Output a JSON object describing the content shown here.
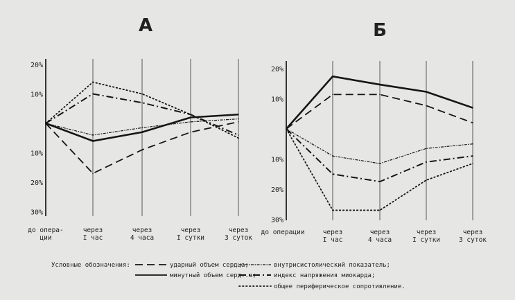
{
  "chart_data": [
    {
      "type": "line",
      "title": "А",
      "categories": [
        "до опера-\nции",
        "через\nI час",
        "через\n4 часа",
        "через\nI сутки",
        "через\n3 суток"
      ],
      "y_tick_labels": [
        "20%",
        "10%",
        "10%",
        "20%",
        "30%"
      ],
      "y_tick_values": [
        20,
        10,
        -10,
        -20,
        -30
      ],
      "ylim": [
        -30,
        20
      ],
      "grid": "vertical lines at each category",
      "series": [
        {
          "name": "ударный объем сердца",
          "style": "dashed",
          "values": [
            0,
            -17,
            -9,
            -3,
            0.5
          ]
        },
        {
          "name": "минутный объем сердца",
          "style": "solid",
          "values": [
            0,
            -6,
            -3,
            2,
            3
          ]
        },
        {
          "name": "внутрисистолический показатель",
          "style": "wavy",
          "values": [
            0,
            -4,
            -1.5,
            0.5,
            1.5
          ]
        },
        {
          "name": "индекс напряжения миокарда",
          "style": "dashdot",
          "values": [
            0,
            10,
            7,
            3,
            -4
          ]
        },
        {
          "name": "общее периферическое сопротивление",
          "style": "dotted",
          "values": [
            0,
            14,
            10,
            3,
            -5
          ]
        }
      ]
    },
    {
      "type": "line",
      "title": "Б",
      "categories": [
        "до операции",
        "через\nI час",
        "через\n4 часа",
        "через\nI сутки",
        "через\n3 суток"
      ],
      "y_tick_labels": [
        "20%",
        "10%",
        "10%",
        "20%",
        "30%"
      ],
      "y_tick_values": [
        20,
        10,
        -10,
        -20,
        -30
      ],
      "ylim": [
        -30,
        20
      ],
      "grid": "vertical lines at each category",
      "series": [
        {
          "name": "ударный объем сердца",
          "style": "dashed",
          "values": [
            0,
            11.4,
            11.4,
            7.7,
            2
          ]
        },
        {
          "name": "минутный объем сердца",
          "style": "solid",
          "values": [
            0,
            17.4,
            14.7,
            12.3,
            7
          ]
        },
        {
          "name": "внутрисистолический показатель",
          "style": "wavy",
          "values": [
            0,
            -9,
            -11.5,
            -6.5,
            -5
          ]
        },
        {
          "name": "индекс напряжения миокарда",
          "style": "dashdot",
          "values": [
            0,
            -15,
            -17.5,
            -11,
            -9
          ]
        },
        {
          "name": "общее периферическое сопротивление",
          "style": "dotted",
          "values": [
            0,
            -27,
            -27,
            -17,
            -11.5
          ]
        }
      ]
    }
  ],
  "legend": {
    "heading": "Условные обозначения:",
    "items": [
      {
        "style": "dashed",
        "label": "ударный объем сердца;"
      },
      {
        "style": "solid",
        "label": "минутный объем серд..а;"
      },
      {
        "style": "wavy",
        "label": "внутрисистолический показатель;"
      },
      {
        "style": "dashdot",
        "label": "индекс напряжения миокарда;"
      },
      {
        "style": "dotted",
        "label": "общее периферическое сопротивление."
      }
    ]
  }
}
